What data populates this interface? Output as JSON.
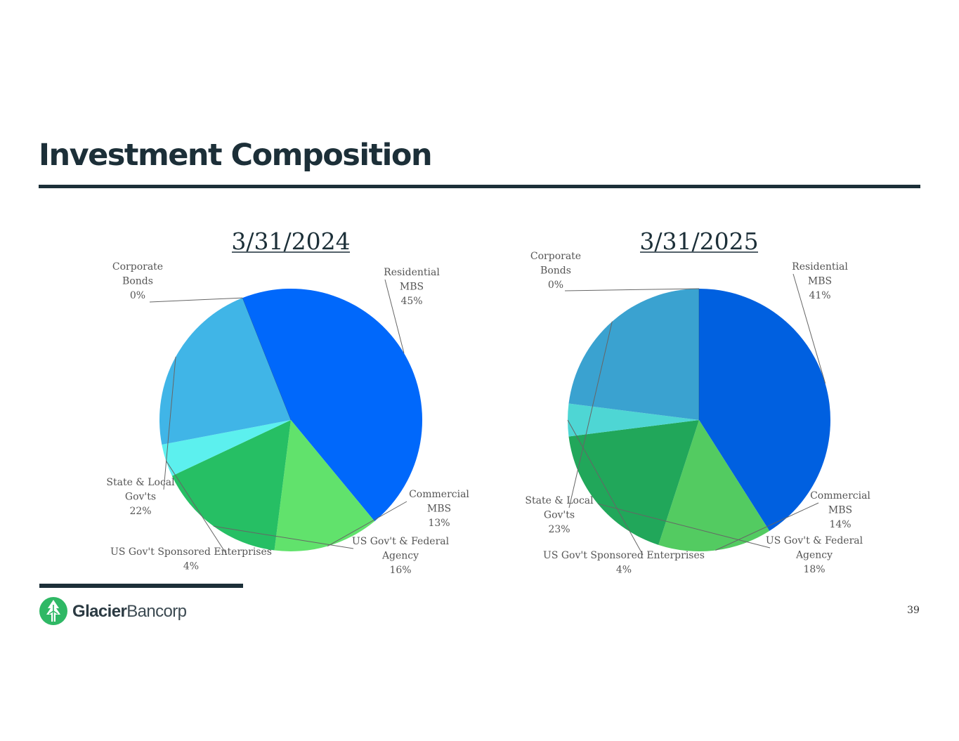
{
  "page": {
    "title": "Investment Composition",
    "page_number": "39"
  },
  "logo": {
    "name_bold": "Glacier",
    "name_light": "Bancorp",
    "color": "#2fb865"
  },
  "chart_data": [
    {
      "type": "pie",
      "title": "3/31/2024",
      "slices": [
        {
          "label_lines": [
            "Residential",
            "MBS"
          ],
          "pct_label": "45%",
          "value": 45,
          "color": "#0068fb"
        },
        {
          "label_lines": [
            "Commercial",
            "MBS"
          ],
          "pct_label": "13%",
          "value": 13,
          "color": "#61e26c"
        },
        {
          "label_lines": [
            "US Gov't & Federal",
            "Agency"
          ],
          "pct_label": "16%",
          "value": 16,
          "color": "#26bf64"
        },
        {
          "label_lines": [
            "US Gov't Sponsored Enterprises"
          ],
          "pct_label": "4%",
          "value": 4,
          "color": "#5cf0ee"
        },
        {
          "label_lines": [
            "State & Local",
            "Gov'ts"
          ],
          "pct_label": "22%",
          "value": 22,
          "color": "#40b5e7"
        },
        {
          "label_lines": [
            "Corporate",
            "Bonds"
          ],
          "pct_label": "0%",
          "value": 0,
          "color": "#1a4fa0"
        }
      ]
    },
    {
      "type": "pie",
      "title": "3/31/2025",
      "slices": [
        {
          "label_lines": [
            "Residential",
            "MBS"
          ],
          "pct_label": "41%",
          "value": 41,
          "color": "#0060e0"
        },
        {
          "label_lines": [
            "Commercial",
            "MBS"
          ],
          "pct_label": "14%",
          "value": 14,
          "color": "#53cb61"
        },
        {
          "label_lines": [
            "US Gov't & Federal",
            "Agency"
          ],
          "pct_label": "18%",
          "value": 18,
          "color": "#21a75a"
        },
        {
          "label_lines": [
            "US Gov't Sponsored Enterprises"
          ],
          "pct_label": "4%",
          "value": 4,
          "color": "#4ed6d4"
        },
        {
          "label_lines": [
            "State & Local",
            "Gov'ts"
          ],
          "pct_label": "23%",
          "value": 23,
          "color": "#3aa2d0"
        },
        {
          "label_lines": [
            "Corporate",
            "Bonds"
          ],
          "pct_label": "0%",
          "value": 0,
          "color": "#174a90"
        }
      ]
    }
  ]
}
